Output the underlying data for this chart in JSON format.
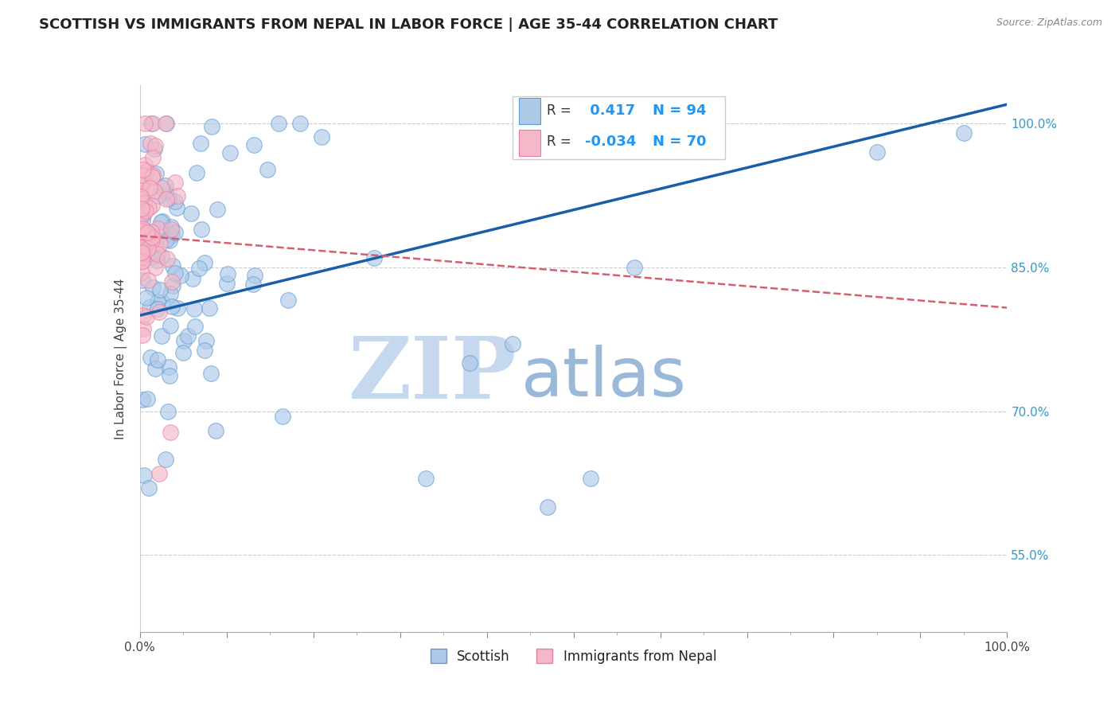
{
  "title": "SCOTTISH VS IMMIGRANTS FROM NEPAL IN LABOR FORCE | AGE 35-44 CORRELATION CHART",
  "source": "Source: ZipAtlas.com",
  "ylabel": "In Labor Force | Age 35-44",
  "xlim": [
    0.0,
    1.0
  ],
  "ylim": [
    0.47,
    1.04
  ],
  "ytick_positions": [
    0.55,
    0.7,
    0.85,
    1.0
  ],
  "ytick_labels": [
    "55.0%",
    "70.0%",
    "85.0%",
    "100.0%"
  ],
  "blue_color": "#aec9e8",
  "blue_edge": "#5b9bd5",
  "pink_color": "#f4b8c8",
  "pink_edge": "#e87da0",
  "blue_trend_color": "#1a5ea8",
  "pink_trend_color": "#d45f6e",
  "R_blue": 0.417,
  "N_blue": 94,
  "R_pink": -0.034,
  "N_pink": 70,
  "watermark_zip": "ZIP",
  "watermark_atlas": "atlas",
  "watermark_color_zip": "#c5d8ee",
  "watermark_color_atlas": "#9ab8d8",
  "legend_label_blue": "Scottish",
  "legend_label_pink": "Immigrants from Nepal",
  "title_fontsize": 13,
  "axis_fontsize": 11,
  "legend_fontsize": 12,
  "right_tick_color": "#3399cc",
  "blue_line_intercept": 0.8,
  "blue_line_slope": 0.22,
  "pink_line_intercept": 0.883,
  "pink_line_slope": -0.075
}
